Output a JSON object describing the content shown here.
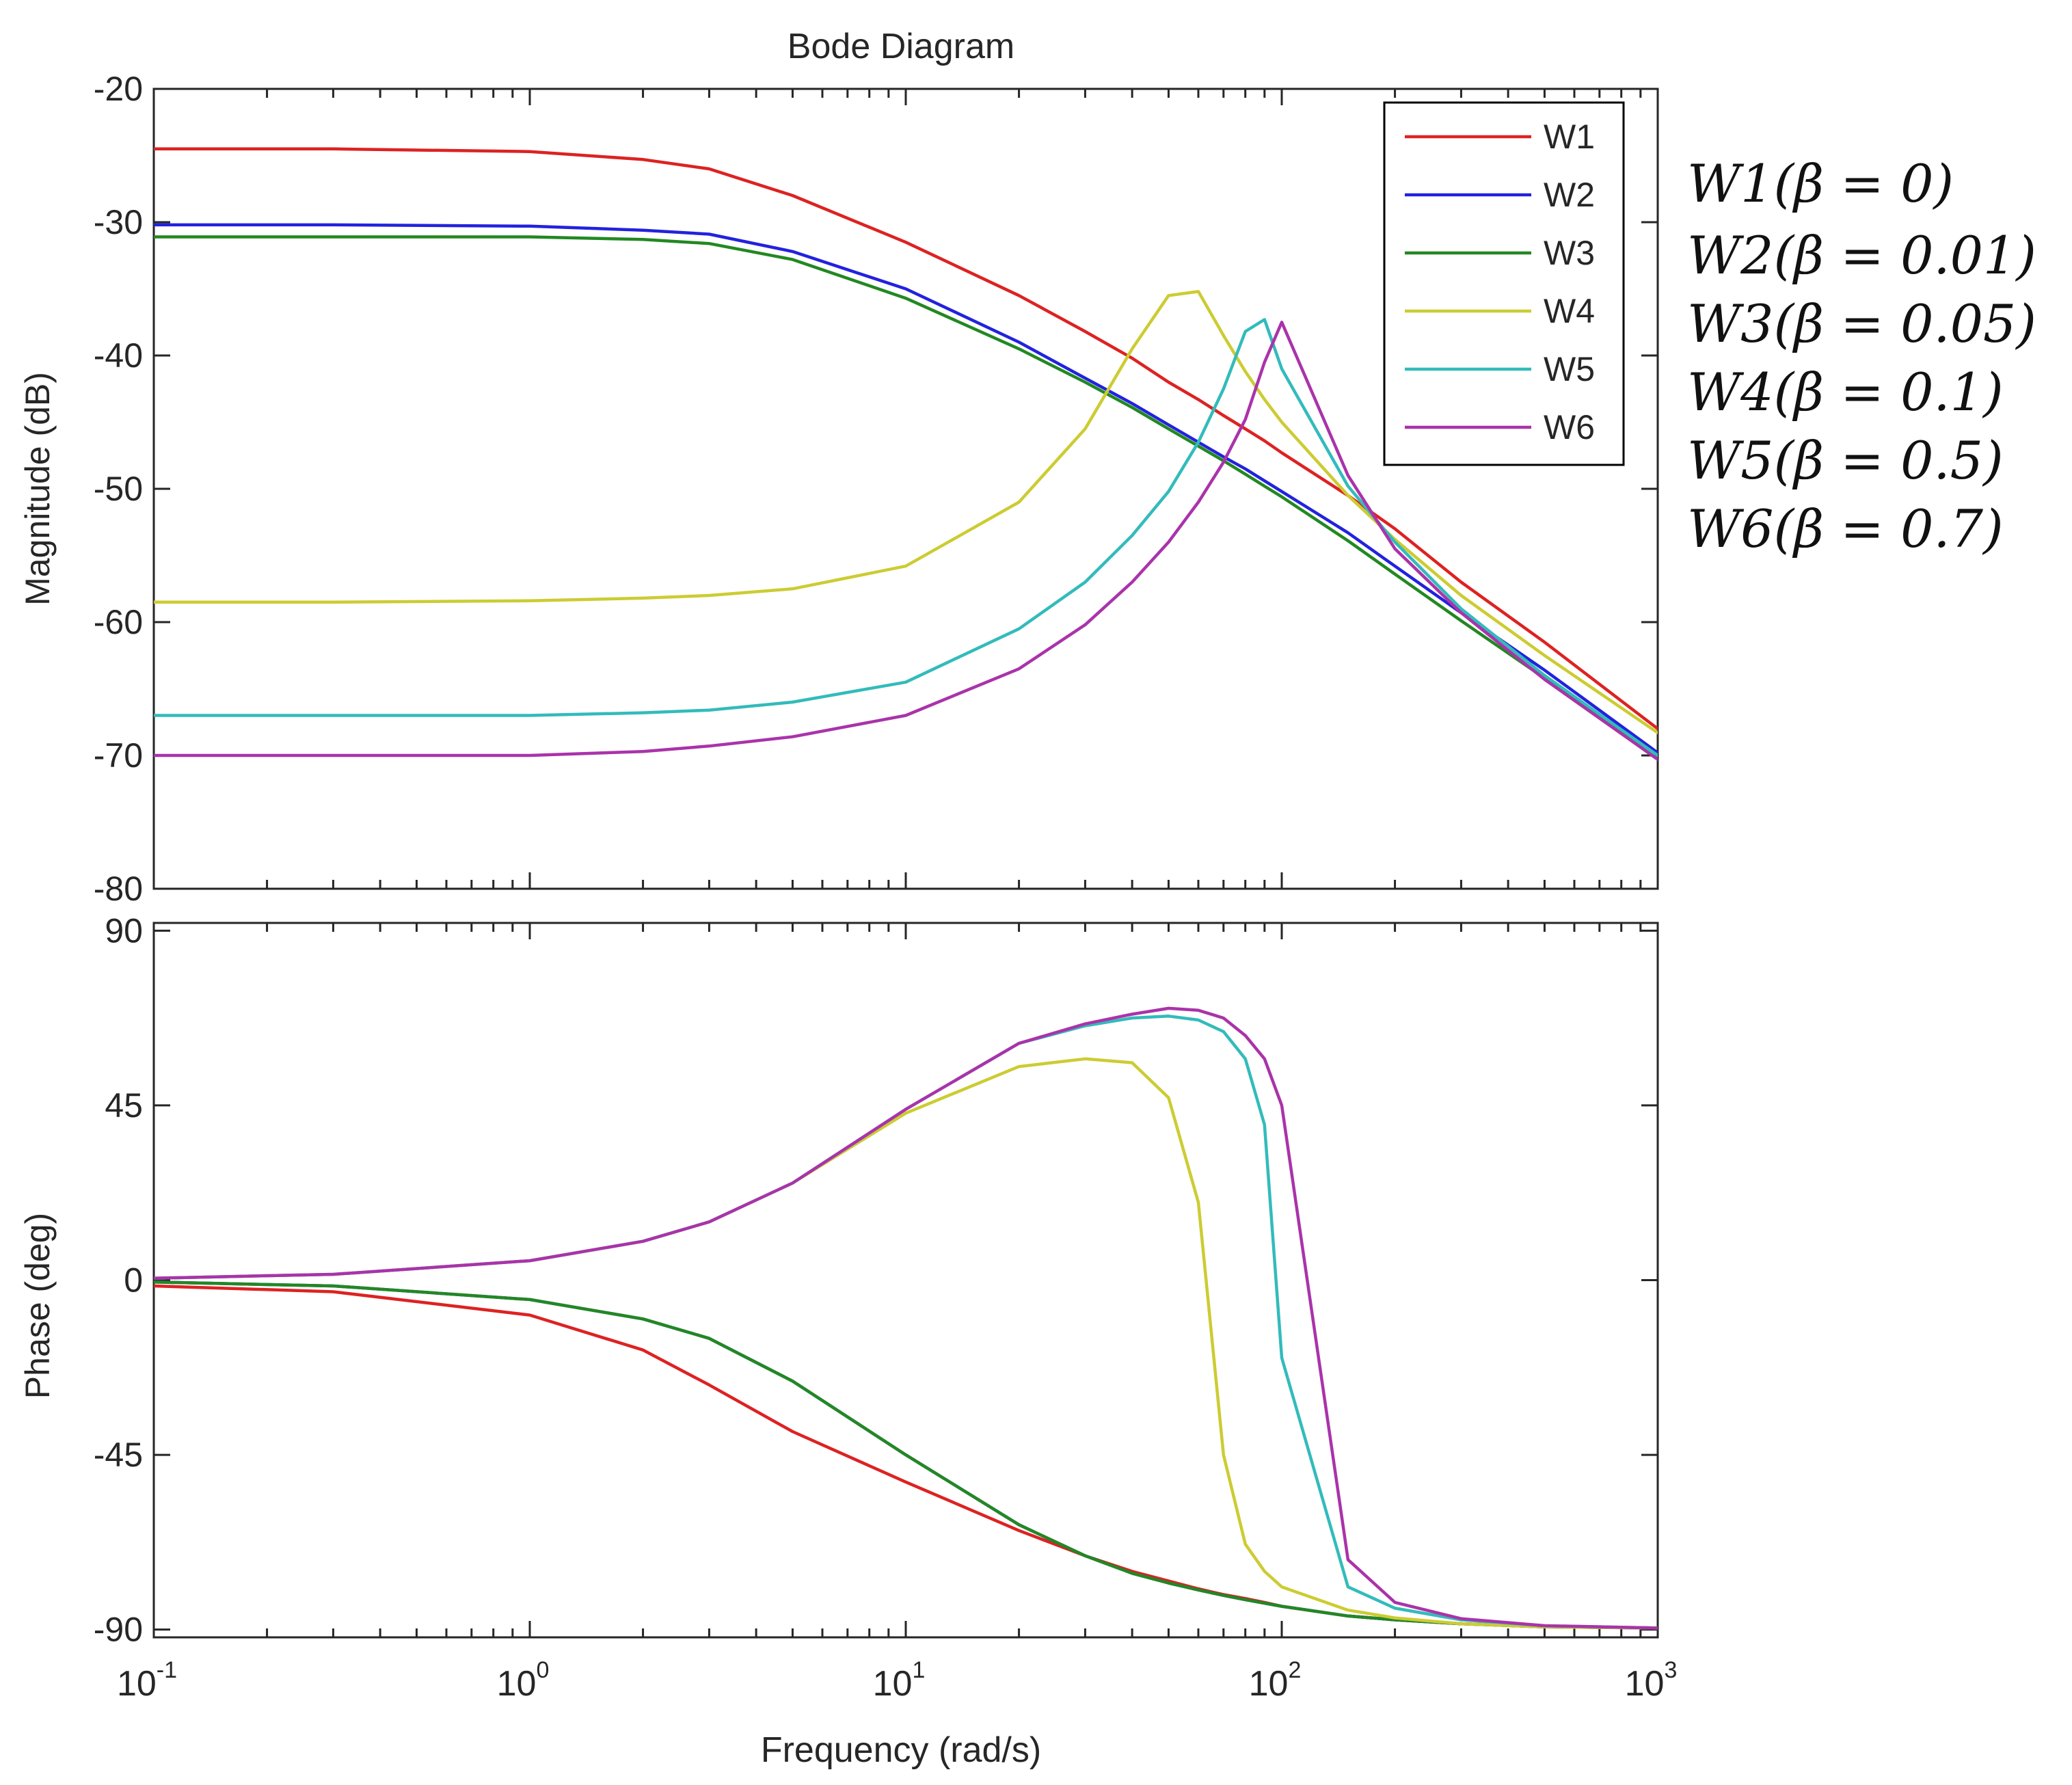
{
  "chart_data": {
    "type": "line",
    "title": "Bode Diagram",
    "xlabel": "Frequency  (rad/s)",
    "x_scale": "log",
    "xlim": [
      0.1,
      1000
    ],
    "x_ticks": [
      {
        "value": 0.1,
        "base": "10",
        "exp": "-1"
      },
      {
        "value": 1,
        "base": "10",
        "exp": "0"
      },
      {
        "value": 10,
        "base": "10",
        "exp": "1"
      },
      {
        "value": 100,
        "base": "10",
        "exp": "2"
      },
      {
        "value": 1000,
        "base": "10",
        "exp": "3"
      }
    ],
    "frequency": [
      0.1,
      0.3,
      1,
      2,
      3,
      5,
      10,
      20,
      30,
      40,
      50,
      60,
      70,
      80,
      90,
      100,
      150,
      200,
      300,
      500,
      1000
    ],
    "magnitude": {
      "ylabel": "Magnitude (dB)",
      "ylim": [
        -80,
        -20
      ],
      "y_ticks": [
        -20,
        -30,
        -40,
        -50,
        -60,
        -70,
        -80
      ],
      "series": [
        {
          "name": "W1",
          "color": "#dd2222",
          "values": [
            -24.5,
            -24.5,
            -24.7,
            -25.3,
            -26,
            -28,
            -31.5,
            -35.5,
            -38.2,
            -40.2,
            -42,
            -43.3,
            -44.5,
            -45.5,
            -46.4,
            -47.3,
            -50.5,
            -53,
            -57,
            -61.5,
            -68
          ]
        },
        {
          "name": "W2",
          "color": "#2222dd",
          "values": [
            -30.2,
            -30.2,
            -30.3,
            -30.6,
            -30.9,
            -32.2,
            -35,
            -39,
            -41.7,
            -43.6,
            -45.2,
            -46.5,
            -47.6,
            -48.5,
            -49.4,
            -50.2,
            -53.3,
            -55.8,
            -59.3,
            -63.6,
            -69.8
          ]
        },
        {
          "name": "W3",
          "color": "#228822",
          "values": [
            -31.1,
            -31.1,
            -31.1,
            -31.3,
            -31.6,
            -32.8,
            -35.7,
            -39.5,
            -42,
            -43.9,
            -45.5,
            -46.8,
            -47.9,
            -48.9,
            -49.8,
            -50.6,
            -53.9,
            -56.4,
            -59.9,
            -64.2,
            -70.3
          ]
        },
        {
          "name": "W4",
          "color": "#cccc33",
          "values": [
            -58.5,
            -58.5,
            -58.4,
            -58.2,
            -58,
            -57.5,
            -55.8,
            -51,
            -45.5,
            -39.5,
            -35.5,
            -35.2,
            -38.5,
            -41.2,
            -43.3,
            -45,
            -50.5,
            -53.8,
            -58,
            -62.5,
            -68.3
          ]
        },
        {
          "name": "W5",
          "color": "#33bbbb",
          "values": [
            -67,
            -67,
            -67,
            -66.8,
            -66.6,
            -66,
            -64.5,
            -60.5,
            -57,
            -53.5,
            -50.2,
            -46.5,
            -42.5,
            -38.2,
            -37.3,
            -41,
            -49.8,
            -54,
            -59,
            -64,
            -70
          ]
        },
        {
          "name": "W6",
          "color": "#aa33aa",
          "values": [
            -70,
            -70,
            -70,
            -69.7,
            -69.3,
            -68.6,
            -67,
            -63.5,
            -60.2,
            -57,
            -54,
            -51,
            -48,
            -44.8,
            -40.5,
            -37.5,
            -49,
            -54.5,
            -59.3,
            -64.3,
            -70.3
          ]
        }
      ]
    },
    "phase": {
      "ylabel": "Phase (deg)",
      "ylim": [
        -92,
        92
      ],
      "y_ticks": [
        90,
        45,
        0,
        -45,
        -90
      ],
      "series": [
        {
          "name": "W1",
          "color": "#dd2222",
          "values": [
            -1.5,
            -3,
            -9,
            -18,
            -27,
            -39,
            -52,
            -64.5,
            -71,
            -75,
            -77.5,
            -79.5,
            -81,
            -82,
            -83,
            -84,
            -86.5,
            -87.5,
            -88.5,
            -89.2,
            -89.6
          ]
        },
        {
          "name": "W2",
          "color": "#2222dd",
          "values": [
            -0.5,
            -1.5,
            -5,
            -10,
            -15,
            -26,
            -45,
            -63,
            -71,
            -75.5,
            -78,
            -79.8,
            -81.2,
            -82.3,
            -83.2,
            -84,
            -86.5,
            -87.5,
            -88.5,
            -89.3,
            -89.6
          ]
        },
        {
          "name": "W3",
          "color": "#228822",
          "values": [
            -0.5,
            -1.5,
            -5,
            -10,
            -15,
            -26,
            -45,
            -63,
            -71,
            -75.5,
            -78,
            -79.8,
            -81.2,
            -82.3,
            -83.2,
            -84,
            -86.5,
            -87.5,
            -88.5,
            -89.3,
            -89.6
          ]
        },
        {
          "name": "W4",
          "color": "#cccc33",
          "values": [
            0.5,
            1.5,
            5,
            10,
            15,
            25,
            43,
            55,
            57,
            56,
            47,
            20,
            -45,
            -68,
            -75,
            -79,
            -85,
            -87,
            -88.5,
            -89.3,
            -89.6
          ]
        },
        {
          "name": "W5",
          "color": "#33bbbb",
          "values": [
            0.5,
            1.5,
            5,
            10,
            15,
            25,
            44,
            61,
            65.5,
            67.5,
            68,
            67,
            64,
            57,
            40,
            -20,
            -79,
            -84.5,
            -87.5,
            -89,
            -89.6
          ]
        },
        {
          "name": "W6",
          "color": "#aa33aa",
          "values": [
            0.5,
            1.5,
            5,
            10,
            15,
            25,
            44,
            61,
            66,
            68.5,
            70,
            69.5,
            67.5,
            63,
            57,
            45,
            -72,
            -83,
            -87.2,
            -89,
            -89.6
          ]
        }
      ]
    },
    "legend": {
      "position": "top-right",
      "entries": [
        "W1",
        "W2",
        "W3",
        "W4",
        "W5",
        "W6"
      ]
    },
    "annotations": [
      {
        "label": "W1",
        "beta": "0"
      },
      {
        "label": "W2",
        "beta": "0.01"
      },
      {
        "label": "W3",
        "beta": "0.05"
      },
      {
        "label": "W4",
        "beta": "0.1"
      },
      {
        "label": "W5",
        "beta": "0.5"
      },
      {
        "label": "W6",
        "beta": "0.7"
      }
    ]
  }
}
